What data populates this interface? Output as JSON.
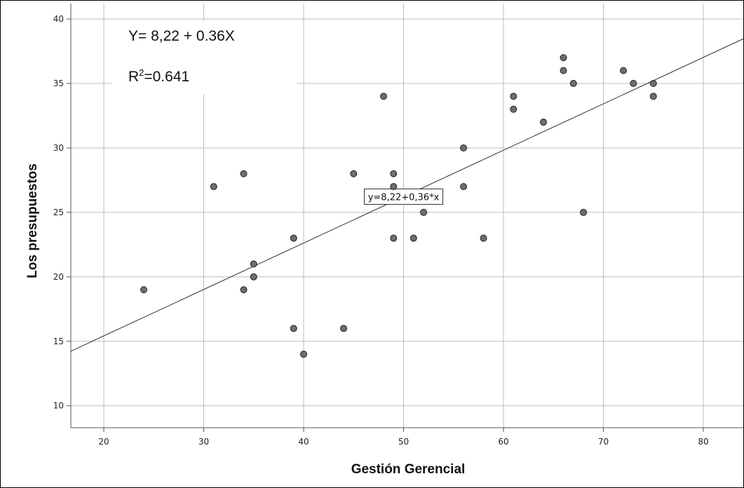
{
  "chart_data": {
    "type": "scatter",
    "xlabel": "Gestión Gerencial",
    "ylabel": "Los presupuestos",
    "xlim": [
      16.7,
      84
    ],
    "ylim": [
      8.3,
      41.2
    ],
    "x_ticks": [
      20,
      30,
      40,
      50,
      60,
      70,
      80
    ],
    "y_ticks": [
      10,
      15,
      20,
      25,
      30,
      35,
      40
    ],
    "grid": true,
    "annotation_equation": "Y= 8,22 + 0.36X",
    "annotation_r2_prefix": "R",
    "annotation_r2_sup": "2",
    "annotation_r2_value": "=0.641",
    "fit_line": {
      "intercept": 8.22,
      "slope": 0.36,
      "label": "y=8,22+0,36*x",
      "label_x": 50
    },
    "marker_color": "#6e6e6e",
    "points": [
      {
        "x": 24,
        "y": 19
      },
      {
        "x": 31,
        "y": 27
      },
      {
        "x": 34,
        "y": 28
      },
      {
        "x": 34,
        "y": 19
      },
      {
        "x": 35,
        "y": 21
      },
      {
        "x": 35,
        "y": 20
      },
      {
        "x": 39,
        "y": 23
      },
      {
        "x": 39,
        "y": 16
      },
      {
        "x": 40,
        "y": 14
      },
      {
        "x": 44,
        "y": 16
      },
      {
        "x": 45,
        "y": 28
      },
      {
        "x": 48,
        "y": 34
      },
      {
        "x": 49,
        "y": 28
      },
      {
        "x": 49,
        "y": 27
      },
      {
        "x": 49,
        "y": 23
      },
      {
        "x": 51,
        "y": 23
      },
      {
        "x": 52,
        "y": 25
      },
      {
        "x": 56,
        "y": 30
      },
      {
        "x": 56,
        "y": 27
      },
      {
        "x": 58,
        "y": 23
      },
      {
        "x": 61,
        "y": 34
      },
      {
        "x": 61,
        "y": 33
      },
      {
        "x": 64,
        "y": 32
      },
      {
        "x": 66,
        "y": 37
      },
      {
        "x": 66,
        "y": 36
      },
      {
        "x": 67,
        "y": 35
      },
      {
        "x": 68,
        "y": 25
      },
      {
        "x": 72,
        "y": 36
      },
      {
        "x": 73,
        "y": 35
      },
      {
        "x": 75,
        "y": 35
      },
      {
        "x": 75,
        "y": 34
      }
    ]
  }
}
